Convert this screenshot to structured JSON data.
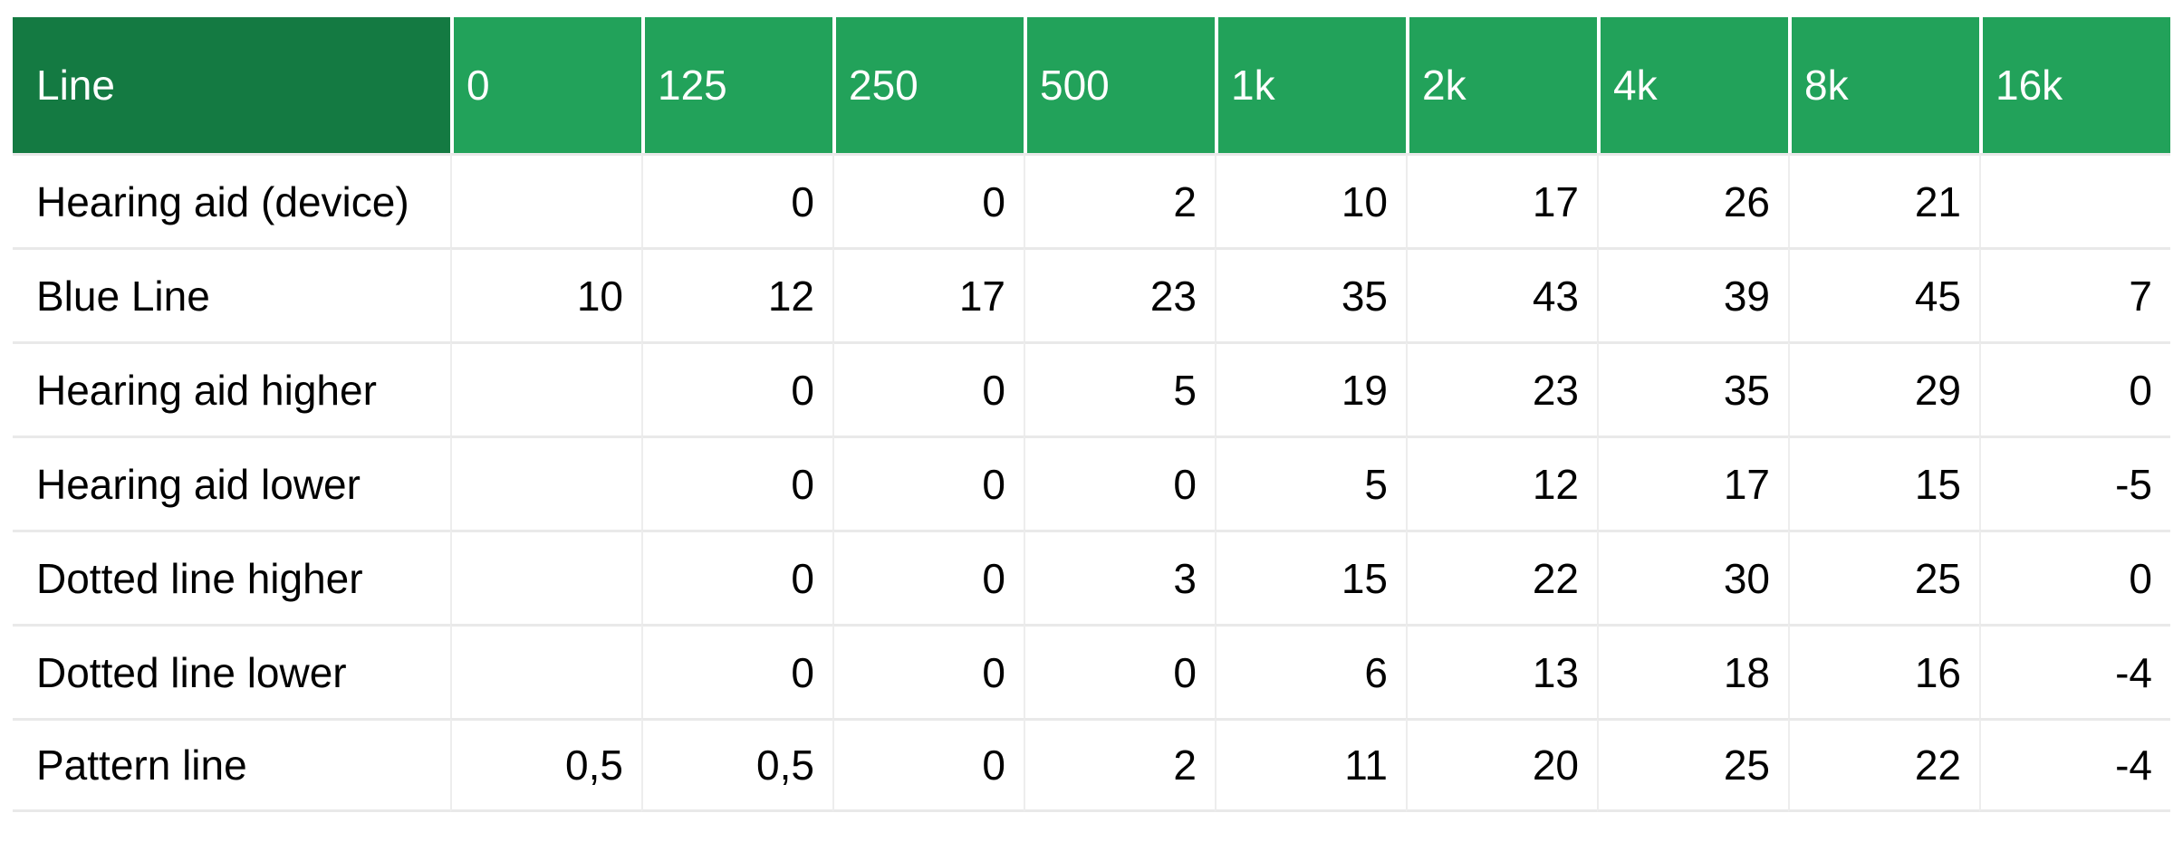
{
  "colors": {
    "header_label_bg": "#147a42",
    "header_value_bg": "#22a25a",
    "header_text": "#ffffff",
    "body_text": "#000000",
    "grid_line": "#e9e9e9"
  },
  "chart_data": {
    "type": "table",
    "columns": [
      "Line",
      "0",
      "125",
      "250",
      "500",
      "1k",
      "2k",
      "4k",
      "8k",
      "16k"
    ],
    "rows": [
      {
        "label": "Hearing aid (device)",
        "values": [
          "",
          "0",
          "0",
          "2",
          "10",
          "17",
          "26",
          "21",
          ""
        ]
      },
      {
        "label": "Blue Line",
        "values": [
          "10",
          "12",
          "17",
          "23",
          "35",
          "43",
          "39",
          "45",
          "7"
        ]
      },
      {
        "label": "Hearing aid higher",
        "values": [
          "",
          "0",
          "0",
          "5",
          "19",
          "23",
          "35",
          "29",
          "0"
        ]
      },
      {
        "label": "Hearing aid lower",
        "values": [
          "",
          "0",
          "0",
          "0",
          "5",
          "12",
          "17",
          "15",
          "-5"
        ]
      },
      {
        "label": "Dotted line higher",
        "values": [
          "",
          "0",
          "0",
          "3",
          "15",
          "22",
          "30",
          "25",
          "0"
        ]
      },
      {
        "label": "Dotted line lower",
        "values": [
          "",
          "0",
          "0",
          "0",
          "6",
          "13",
          "18",
          "16",
          "-4"
        ]
      },
      {
        "label": "Pattern line",
        "values": [
          "0,5",
          "0,5",
          "0",
          "2",
          "11",
          "20",
          "25",
          "22",
          "-4"
        ]
      }
    ]
  }
}
